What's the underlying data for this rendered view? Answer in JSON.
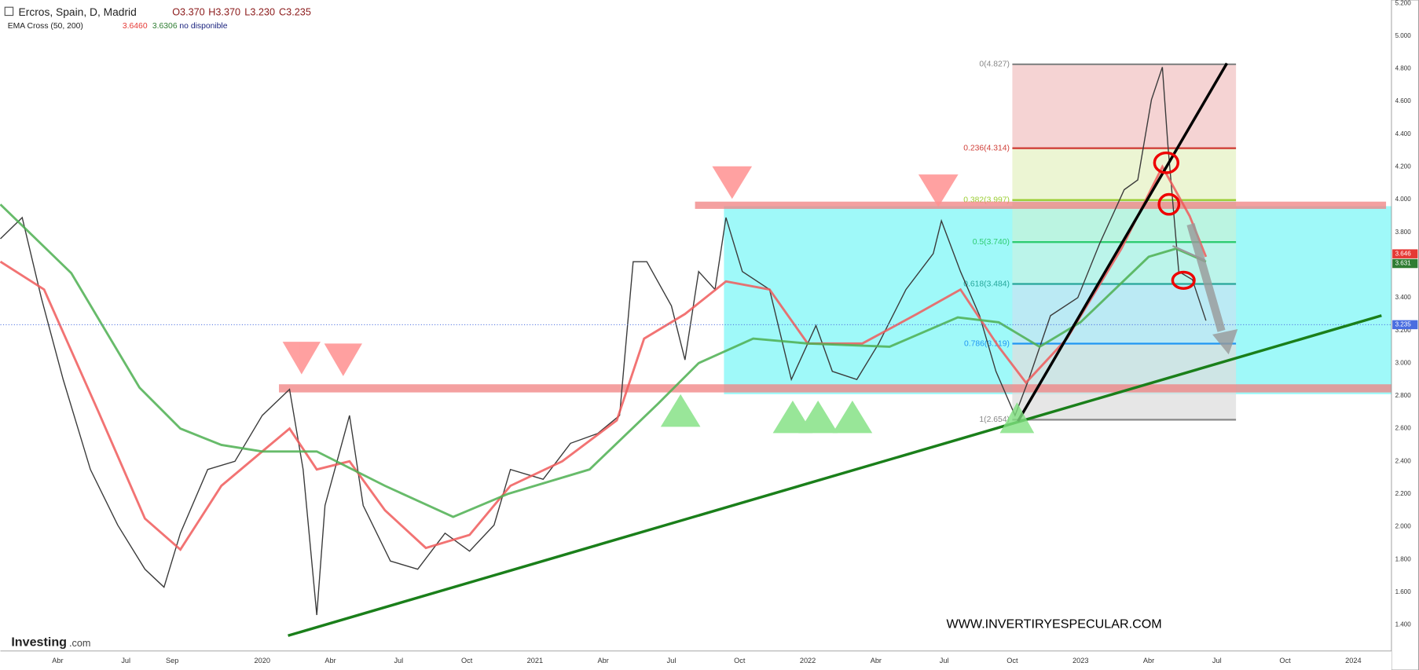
{
  "header": {
    "title": "Ercros, Spain, D, Madrid",
    "open": "O3.370",
    "high": "H3.370",
    "low": "L3.230",
    "close": "C3.235",
    "indicator": "EMA Cross (50, 200)",
    "ema_fast_value": "3.6460",
    "ema_slow_value": "3.6306",
    "ema_status": "no disponible"
  },
  "watermark": "WWW.INVERTIRYESPECULAR.COM",
  "logo": "Investing",
  "logo_suffix": ".com",
  "chart_data": {
    "type": "line",
    "ylim": [
      1.24,
      5.22
    ],
    "xlim": [
      2019.04,
      2024.14
    ],
    "yticks": [
      {
        "value": 1.4,
        "label": "1.400"
      },
      {
        "value": 1.6,
        "label": "1.600"
      },
      {
        "value": 1.8,
        "label": "1.800"
      },
      {
        "value": 2.0,
        "label": "2.000"
      },
      {
        "value": 2.2,
        "label": "2.200"
      },
      {
        "value": 2.4,
        "label": "2.400"
      },
      {
        "value": 2.6,
        "label": "2.600"
      },
      {
        "value": 2.8,
        "label": "2.800"
      },
      {
        "value": 3.0,
        "label": "3.000"
      },
      {
        "value": 3.2,
        "label": "3.200"
      },
      {
        "value": 3.4,
        "label": "3.400"
      },
      {
        "value": 3.6,
        "label": "3.600"
      },
      {
        "value": 3.8,
        "label": "3.800"
      },
      {
        "value": 4.0,
        "label": "4.000"
      },
      {
        "value": 4.2,
        "label": "4.200"
      },
      {
        "value": 4.4,
        "label": "4.400"
      },
      {
        "value": 4.6,
        "label": "4.600"
      },
      {
        "value": 4.8,
        "label": "4.800"
      },
      {
        "value": 5.0,
        "label": "5.000"
      },
      {
        "value": 5.2,
        "label": "5.200"
      }
    ],
    "xticks": [
      {
        "value": 2019.25,
        "label": "Abr"
      },
      {
        "value": 2019.5,
        "label": "Jul"
      },
      {
        "value": 2019.67,
        "label": "Sep"
      },
      {
        "value": 2020,
        "label": "2020"
      },
      {
        "value": 2020.25,
        "label": "Abr"
      },
      {
        "value": 2020.5,
        "label": "Jul"
      },
      {
        "value": 2020.75,
        "label": "Oct"
      },
      {
        "value": 2021,
        "label": "2021"
      },
      {
        "value": 2021.25,
        "label": "Abr"
      },
      {
        "value": 2021.5,
        "label": "Jul"
      },
      {
        "value": 2021.75,
        "label": "Oct"
      },
      {
        "value": 2022,
        "label": "2022"
      },
      {
        "value": 2022.25,
        "label": "Abr"
      },
      {
        "value": 2022.5,
        "label": "Jul"
      },
      {
        "value": 2022.75,
        "label": "Oct"
      },
      {
        "value": 2023,
        "label": "2023"
      },
      {
        "value": 2023.25,
        "label": "Abr"
      },
      {
        "value": 2023.5,
        "label": "Jul"
      },
      {
        "value": 2023.75,
        "label": "Oct"
      },
      {
        "value": 2024,
        "label": "2024"
      }
    ],
    "series": [
      {
        "name": "Precio",
        "color": "#3a3a3a",
        "x": [
          2019.04,
          2019.12,
          2019.19,
          2019.27,
          2019.37,
          2019.47,
          2019.57,
          2019.64,
          2019.7,
          2019.8,
          2019.9,
          2020.0,
          2020.1,
          2020.15,
          2020.2,
          2020.23,
          2020.32,
          2020.37,
          2020.47,
          2020.57,
          2020.67,
          2020.76,
          2020.85,
          2020.91,
          2021.03,
          2021.13,
          2021.23,
          2021.31,
          2021.36,
          2021.41,
          2021.5,
          2021.55,
          2021.6,
          2021.66,
          2021.7,
          2021.76,
          2021.86,
          2021.94,
          2022.03,
          2022.09,
          2022.18,
          2022.26,
          2022.36,
          2022.46,
          2022.49,
          2022.56,
          2022.63,
          2022.69,
          2022.76,
          2022.81,
          2022.89,
          2022.99,
          2023.07,
          2023.16,
          2023.21,
          2023.26,
          2023.3,
          2023.32,
          2023.36,
          2023.41,
          2023.46
        ],
        "values": [
          3.76,
          3.89,
          3.4,
          2.9,
          2.35,
          2.01,
          1.74,
          1.63,
          1.96,
          2.35,
          2.4,
          2.68,
          2.84,
          2.35,
          1.46,
          2.13,
          2.68,
          2.13,
          1.79,
          1.74,
          1.96,
          1.85,
          2.01,
          2.35,
          2.29,
          2.51,
          2.57,
          2.68,
          3.62,
          3.62,
          3.35,
          3.02,
          3.56,
          3.45,
          3.89,
          3.56,
          3.45,
          2.9,
          3.23,
          2.95,
          2.9,
          3.12,
          3.45,
          3.67,
          3.87,
          3.56,
          3.29,
          2.95,
          2.68,
          2.9,
          3.29,
          3.4,
          3.73,
          4.06,
          4.12,
          4.61,
          4.81,
          4.34,
          3.56,
          3.51,
          3.26
        ]
      },
      {
        "name": "EMA 50",
        "color": "#f05a5a",
        "x": [
          2019.04,
          2019.2,
          2019.4,
          2019.57,
          2019.7,
          2019.85,
          2020.0,
          2020.1,
          2020.2,
          2020.32,
          2020.45,
          2020.6,
          2020.76,
          2020.91,
          2021.1,
          2021.3,
          2021.4,
          2021.55,
          2021.7,
          2021.86,
          2022.0,
          2022.2,
          2022.4,
          2022.56,
          2022.7,
          2022.8,
          2022.95,
          2023.15,
          2023.3,
          2023.4,
          2023.46
        ],
        "values": [
          3.62,
          3.45,
          2.7,
          2.05,
          1.86,
          2.25,
          2.46,
          2.6,
          2.35,
          2.4,
          2.1,
          1.87,
          1.95,
          2.25,
          2.4,
          2.65,
          3.15,
          3.3,
          3.5,
          3.45,
          3.12,
          3.12,
          3.3,
          3.45,
          3.1,
          2.88,
          3.15,
          3.7,
          4.2,
          3.9,
          3.65
        ]
      },
      {
        "name": "EMA 200",
        "color": "#4caf50",
        "x": [
          2019.04,
          2019.3,
          2019.55,
          2019.7,
          2019.85,
          2020.0,
          2020.2,
          2020.45,
          2020.7,
          2020.9,
          2021.2,
          2021.45,
          2021.6,
          2021.8,
          2022.0,
          2022.3,
          2022.55,
          2022.7,
          2022.85,
          2023.0,
          2023.25,
          2023.35,
          2023.46
        ],
        "values": [
          3.97,
          3.55,
          2.85,
          2.6,
          2.5,
          2.46,
          2.46,
          2.25,
          2.06,
          2.2,
          2.35,
          2.75,
          3.0,
          3.15,
          3.12,
          3.1,
          3.28,
          3.25,
          3.1,
          3.25,
          3.65,
          3.7,
          3.62
        ]
      }
    ],
    "fibonacci": {
      "x": [
        2022.75,
        2023.57
      ],
      "levels": [
        {
          "label": "0(4.827)",
          "value": 4.827,
          "color": "#888888"
        },
        {
          "label": "0.236(4.314)",
          "value": 4.314,
          "color": "#d0413a"
        },
        {
          "label": "0.382(3.997)",
          "value": 3.997,
          "color": "#9acd32"
        },
        {
          "label": "0.5(3.740)",
          "value": 3.74,
          "color": "#2ecc71"
        },
        {
          "label": "0.618(3.484)",
          "value": 3.484,
          "color": "#26a69a"
        },
        {
          "label": "0.786(3.119)",
          "value": 3.119,
          "color": "#2196f3"
        },
        {
          "label": "1(2.654)",
          "value": 2.654,
          "color": "#888888"
        }
      ],
      "zone_colors": [
        "#f2c4c4",
        "#e6f2c4",
        "#c4f2d8",
        "#c4f2e4",
        "#c4e4f2",
        "#dddddd"
      ]
    },
    "price_tags": [
      {
        "value": 3.646,
        "color": "#e53935"
      },
      {
        "value": 3.631,
        "color": "#2e7d32"
      },
      {
        "value": 3.235,
        "color": "#4a6ee0"
      }
    ]
  }
}
